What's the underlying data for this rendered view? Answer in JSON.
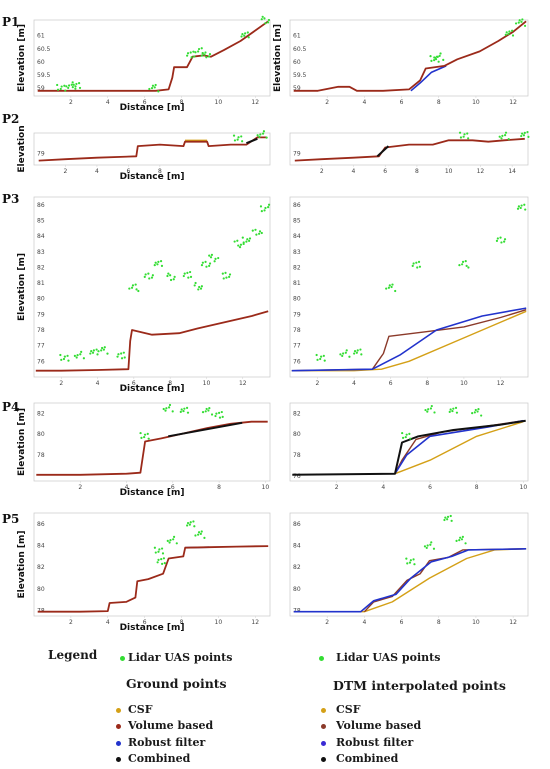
{
  "colors": {
    "lidar": "#33dd33",
    "csf": "#d4a017",
    "volume": "#9b2a1a",
    "robust": "#2233cc",
    "combined": "#111111",
    "dtm_csf": "#d4a017",
    "dtm_volume": "#8b3a2a",
    "dtm_robust": "#3a2bd4",
    "dtm_combined": "#111111"
  },
  "labels": {
    "distance": "Distance [m]",
    "elevation": "Elevation [m]",
    "elevation_short": "Elevation"
  },
  "legend": {
    "title": "Legend",
    "lidar": "Lidar UAS points",
    "ground_header": "Ground points",
    "dtm_header": "DTM interpolated points",
    "csf": "CSF",
    "volume": "Volume based",
    "robust": "Robust filter",
    "combined": "Combined"
  },
  "chart_data": [
    {
      "type": "line",
      "profile": "P1",
      "panel": "ground points",
      "xlim": [
        0,
        12.8
      ],
      "ylim": [
        58.7,
        61.6
      ],
      "xticks": [
        2,
        4,
        6,
        8,
        10,
        12
      ],
      "yticks": [
        59,
        59.5,
        60,
        60.5,
        61
      ],
      "ylabel": "Elevation [m]",
      "xlabel": "Distance [m]",
      "ground": [
        [
          0.2,
          58.9
        ],
        [
          1.5,
          58.9
        ],
        [
          2.8,
          58.9
        ],
        [
          4.0,
          58.9
        ],
        [
          5.3,
          58.9
        ],
        [
          6.6,
          58.9
        ],
        [
          7.3,
          58.95
        ],
        [
          7.5,
          59.4
        ],
        [
          7.6,
          59.8
        ],
        [
          8.3,
          59.8
        ],
        [
          8.6,
          60.2
        ],
        [
          9.2,
          60.25
        ],
        [
          9.6,
          60.2
        ],
        [
          10.3,
          60.45
        ],
        [
          11.2,
          60.8
        ],
        [
          12.0,
          61.2
        ],
        [
          12.7,
          61.55
        ]
      ],
      "lidar": [
        [
          1.5,
          59.0
        ],
        [
          2.0,
          59.1
        ],
        [
          2.3,
          59.1
        ],
        [
          6.5,
          59.0
        ],
        [
          8.5,
          60.3
        ],
        [
          9.0,
          60.4
        ],
        [
          9.3,
          60.3
        ],
        [
          11.5,
          61.0
        ],
        [
          12.5,
          61.6
        ]
      ]
    },
    {
      "type": "line",
      "profile": "P1",
      "panel": "DTM interpolated points",
      "xlim": [
        0,
        12.8
      ],
      "ylim": [
        58.7,
        61.6
      ],
      "xticks": [
        2,
        4,
        6,
        8,
        10,
        12
      ],
      "yticks": [
        59,
        59.5,
        60,
        60.5,
        61
      ],
      "ylabel": "Elevation [m]",
      "xlabel": "",
      "ground": [
        [
          0.2,
          58.9
        ],
        [
          1.5,
          58.9
        ],
        [
          2.6,
          59.05
        ],
        [
          3.2,
          59.05
        ],
        [
          3.6,
          58.9
        ],
        [
          5.0,
          58.9
        ],
        [
          6.4,
          58.95
        ],
        [
          7.0,
          59.3
        ],
        [
          7.3,
          59.75
        ],
        [
          8.3,
          59.85
        ],
        [
          9.0,
          60.1
        ],
        [
          10.2,
          60.4
        ],
        [
          11.2,
          60.8
        ],
        [
          12.0,
          61.15
        ],
        [
          12.7,
          61.55
        ]
      ],
      "robust": [
        [
          6.5,
          58.9
        ],
        [
          7.0,
          59.2
        ],
        [
          7.6,
          59.6
        ],
        [
          8.4,
          59.85
        ]
      ],
      "lidar": [
        [
          7.8,
          60.1
        ],
        [
          8.0,
          60.2
        ],
        [
          11.8,
          61.1
        ],
        [
          12.4,
          61.5
        ]
      ]
    },
    {
      "type": "line",
      "profile": "P2",
      "panel": "ground points",
      "xlim": [
        0,
        15
      ],
      "ylim": [
        78.6,
        79.7
      ],
      "xticks": [
        2,
        4,
        6,
        8
      ],
      "yticks": [
        79
      ],
      "ylabel": "Elevation",
      "xlabel": "Distance [m]",
      "ground": [
        [
          0.3,
          78.75
        ],
        [
          2.0,
          78.8
        ],
        [
          4.0,
          78.85
        ],
        [
          6.5,
          78.9
        ],
        [
          6.6,
          79.25
        ],
        [
          8.0,
          79.3
        ],
        [
          9.5,
          79.25
        ],
        [
          9.6,
          79.4
        ],
        [
          11.0,
          79.4
        ],
        [
          11.1,
          79.25
        ],
        [
          12.5,
          79.3
        ],
        [
          13.5,
          79.3
        ],
        [
          14.2,
          79.55
        ],
        [
          14.8,
          79.55
        ]
      ],
      "csf": [
        [
          9.6,
          79.45
        ],
        [
          11.0,
          79.45
        ]
      ],
      "combined": [
        [
          13.5,
          79.35
        ],
        [
          14.2,
          79.5
        ]
      ],
      "lidar": [
        [
          13.0,
          79.5
        ],
        [
          14.5,
          79.65
        ]
      ]
    },
    {
      "type": "line",
      "profile": "P2",
      "panel": "DTM interpolated points",
      "xlim": [
        0,
        15
      ],
      "ylim": [
        78.6,
        79.7
      ],
      "xticks": [
        2,
        4,
        6,
        8,
        10,
        12,
        14
      ],
      "yticks": [
        79
      ],
      "ylabel": "",
      "xlabel": "",
      "ground": [
        [
          0.3,
          78.75
        ],
        [
          2.0,
          78.8
        ],
        [
          4.0,
          78.85
        ],
        [
          5.6,
          78.9
        ],
        [
          6.0,
          79.2
        ],
        [
          7.5,
          79.3
        ],
        [
          9.0,
          79.3
        ],
        [
          10.0,
          79.45
        ],
        [
          11.5,
          79.45
        ],
        [
          12.5,
          79.4
        ],
        [
          13.5,
          79.45
        ],
        [
          14.8,
          79.5
        ]
      ],
      "combined": [
        [
          5.5,
          78.9
        ],
        [
          6.2,
          79.25
        ]
      ],
      "lidar": [
        [
          11.0,
          79.6
        ],
        [
          13.5,
          79.6
        ],
        [
          14.8,
          79.65
        ]
      ]
    },
    {
      "type": "scatter",
      "profile": "P3",
      "panel": "ground points",
      "xlim": [
        0.5,
        13.5
      ],
      "ylim": [
        75,
        86.5
      ],
      "xticks": [
        2,
        4,
        6,
        8,
        10,
        12
      ],
      "yticks": [
        76,
        77,
        78,
        79,
        80,
        81,
        82,
        83,
        84,
        85,
        86
      ],
      "ylabel": "Elevation [m]",
      "xlabel": "Distance [m]",
      "ground": [
        [
          0.6,
          75.4
        ],
        [
          2.0,
          75.4
        ],
        [
          4.0,
          75.45
        ],
        [
          5.7,
          75.5
        ],
        [
          5.8,
          77.3
        ],
        [
          5.9,
          78.0
        ],
        [
          7.0,
          77.7
        ],
        [
          8.5,
          77.8
        ],
        [
          9.5,
          78.1
        ],
        [
          11.0,
          78.5
        ],
        [
          12.5,
          78.9
        ],
        [
          13.4,
          79.2
        ]
      ],
      "lidar": [
        [
          2.2,
          76.2
        ],
        [
          3.0,
          76.4
        ],
        [
          3.8,
          76.6
        ],
        [
          4.3,
          76.7
        ],
        [
          5.3,
          76.4
        ],
        [
          6.0,
          80.7
        ],
        [
          6.8,
          81.5
        ],
        [
          7.4,
          82.2
        ],
        [
          8.0,
          81.4
        ],
        [
          9.0,
          81.5
        ],
        [
          9.5,
          80.8
        ],
        [
          10.0,
          82.2
        ],
        [
          10.4,
          82.6
        ],
        [
          11.1,
          81.5
        ],
        [
          11.8,
          83.5
        ],
        [
          12.2,
          83.8
        ],
        [
          12.8,
          84.2
        ],
        [
          13.2,
          85.8
        ]
      ]
    },
    {
      "type": "line",
      "profile": "P3",
      "panel": "DTM interpolated points",
      "xlim": [
        0.5,
        13.5
      ],
      "ylim": [
        75,
        86.5
      ],
      "xticks": [
        2,
        4,
        6,
        8,
        10,
        12
      ],
      "yticks": [
        76,
        77,
        78,
        79,
        80,
        81,
        82,
        83,
        84,
        85,
        86
      ],
      "ylabel": "",
      "xlabel": "",
      "csf": [
        [
          0.6,
          75.4
        ],
        [
          4.0,
          75.4
        ],
        [
          5.5,
          75.5
        ],
        [
          7.0,
          76.0
        ],
        [
          10.0,
          77.5
        ],
        [
          13.4,
          79.2
        ]
      ],
      "volume": [
        [
          0.6,
          75.4
        ],
        [
          5.0,
          75.5
        ],
        [
          5.6,
          76.5
        ],
        [
          5.9,
          77.6
        ],
        [
          8.0,
          77.9
        ],
        [
          10.0,
          78.2
        ],
        [
          12.0,
          78.8
        ],
        [
          13.4,
          79.3
        ]
      ],
      "robust": [
        [
          0.6,
          75.4
        ],
        [
          5.0,
          75.5
        ],
        [
          6.5,
          76.4
        ],
        [
          8.5,
          78.0
        ],
        [
          11.0,
          78.9
        ],
        [
          13.4,
          79.4
        ]
      ],
      "lidar": [
        [
          2.2,
          76.2
        ],
        [
          3.5,
          76.5
        ],
        [
          4.2,
          76.6
        ],
        [
          6.0,
          80.7
        ],
        [
          7.4,
          82.2
        ],
        [
          10.0,
          82.2
        ],
        [
          12.0,
          83.8
        ],
        [
          13.2,
          85.8
        ]
      ]
    },
    {
      "type": "line",
      "profile": "P4",
      "panel": "ground points",
      "xlim": [
        0,
        10.2
      ],
      "ylim": [
        75.5,
        83
      ],
      "xticks": [
        2,
        4,
        6,
        8,
        10
      ],
      "yticks": [
        78,
        80,
        82
      ],
      "ylabel": "Elevation [m]",
      "xlabel": "Distance [m]",
      "ground": [
        [
          0.1,
          76.1
        ],
        [
          2.0,
          76.1
        ],
        [
          4.0,
          76.2
        ],
        [
          4.6,
          76.3
        ],
        [
          4.8,
          79.3
        ],
        [
          5.5,
          79.6
        ],
        [
          6.5,
          80.1
        ],
        [
          7.5,
          80.6
        ],
        [
          8.5,
          81.0
        ],
        [
          9.4,
          81.2
        ],
        [
          10.1,
          81.2
        ]
      ],
      "combined": [
        [
          5.8,
          79.8
        ],
        [
          9.0,
          81.1
        ]
      ],
      "lidar": [
        [
          4.8,
          79.8
        ],
        [
          5.8,
          82.5
        ],
        [
          6.5,
          82.3
        ],
        [
          7.5,
          82.2
        ],
        [
          8.0,
          81.9
        ]
      ]
    },
    {
      "type": "line",
      "profile": "P4",
      "panel": "DTM interpolated points",
      "xlim": [
        0,
        10.2
      ],
      "ylim": [
        75.5,
        83
      ],
      "xticks": [
        2,
        4,
        6,
        8,
        10
      ],
      "yticks": [
        76,
        78,
        80,
        82
      ],
      "ylabel": "",
      "xlabel": "",
      "csf": [
        [
          4.5,
          76.2
        ],
        [
          6.0,
          77.5
        ],
        [
          8.0,
          79.8
        ],
        [
          10.0,
          81.2
        ]
      ],
      "volume": [
        [
          4.5,
          76.2
        ],
        [
          4.8,
          77.5
        ],
        [
          5.4,
          79.5
        ],
        [
          6.5,
          80.2
        ],
        [
          8.5,
          80.8
        ],
        [
          10.0,
          81.3
        ]
      ],
      "robust": [
        [
          4.5,
          76.2
        ],
        [
          5.0,
          78.0
        ],
        [
          6.0,
          79.8
        ],
        [
          8.5,
          80.7
        ],
        [
          10.0,
          81.3
        ]
      ],
      "combined": [
        [
          0.1,
          76.1
        ],
        [
          4.5,
          76.2
        ],
        [
          4.8,
          79.2
        ],
        [
          5.5,
          79.8
        ],
        [
          7.0,
          80.4
        ],
        [
          9.0,
          80.9
        ],
        [
          10.1,
          81.3
        ]
      ],
      "lidar": [
        [
          5.0,
          79.8
        ],
        [
          6.0,
          82.4
        ],
        [
          7.0,
          82.3
        ],
        [
          8.0,
          82.1
        ]
      ]
    },
    {
      "type": "line",
      "profile": "P5",
      "panel": "ground points",
      "xlim": [
        0,
        12.8
      ],
      "ylim": [
        77.5,
        87
      ],
      "xticks": [
        2,
        4,
        6,
        8,
        10,
        12
      ],
      "yticks": [
        78,
        80,
        82,
        84,
        86
      ],
      "ylabel": "Elevation [m]",
      "xlabel": "Distance [m]",
      "ground": [
        [
          0.2,
          77.9
        ],
        [
          2.5,
          77.9
        ],
        [
          4.0,
          77.95
        ],
        [
          4.1,
          78.7
        ],
        [
          5.0,
          78.8
        ],
        [
          5.5,
          79.2
        ],
        [
          5.6,
          80.7
        ],
        [
          6.2,
          80.9
        ],
        [
          7.0,
          81.4
        ],
        [
          7.3,
          82.8
        ],
        [
          8.1,
          83.0
        ],
        [
          8.2,
          83.8
        ],
        [
          9.5,
          83.85
        ],
        [
          11.0,
          83.9
        ],
        [
          12.7,
          83.95
        ]
      ],
      "robust": [
        [
          8.2,
          83.8
        ],
        [
          9.5,
          83.85
        ]
      ],
      "lidar": [
        [
          6.8,
          83.5
        ],
        [
          7.5,
          84.5
        ],
        [
          8.5,
          86.0
        ],
        [
          9.0,
          85.0
        ],
        [
          6.9,
          82.6
        ]
      ]
    },
    {
      "type": "line",
      "profile": "P5",
      "panel": "DTM interpolated points",
      "xlim": [
        0,
        12.8
      ],
      "ylim": [
        77.5,
        87
      ],
      "xticks": [
        2,
        4,
        6,
        8,
        10,
        12
      ],
      "yticks": [
        78,
        80,
        82,
        84,
        86
      ],
      "ylabel": "",
      "xlabel": "",
      "csf": [
        [
          0.2,
          77.9
        ],
        [
          4.0,
          77.9
        ],
        [
          5.5,
          78.8
        ],
        [
          7.5,
          81.0
        ],
        [
          9.5,
          82.8
        ],
        [
          11.0,
          83.6
        ],
        [
          12.7,
          83.7
        ]
      ],
      "volume": [
        [
          4.0,
          77.9
        ],
        [
          4.5,
          78.8
        ],
        [
          5.5,
          79.3
        ],
        [
          6.3,
          80.8
        ],
        [
          7.0,
          81.4
        ],
        [
          7.5,
          82.6
        ],
        [
          8.5,
          82.9
        ],
        [
          9.3,
          83.6
        ],
        [
          12.7,
          83.7
        ]
      ],
      "robust": [
        [
          0.2,
          77.9
        ],
        [
          3.8,
          77.9
        ],
        [
          4.5,
          78.9
        ],
        [
          5.7,
          79.5
        ],
        [
          6.5,
          81.0
        ],
        [
          7.6,
          82.5
        ],
        [
          8.7,
          83.0
        ],
        [
          9.6,
          83.6
        ],
        [
          12.7,
          83.7
        ]
      ],
      "lidar": [
        [
          6.5,
          82.5
        ],
        [
          7.5,
          84.0
        ],
        [
          8.5,
          86.5
        ],
        [
          9.2,
          84.5
        ]
      ]
    }
  ]
}
